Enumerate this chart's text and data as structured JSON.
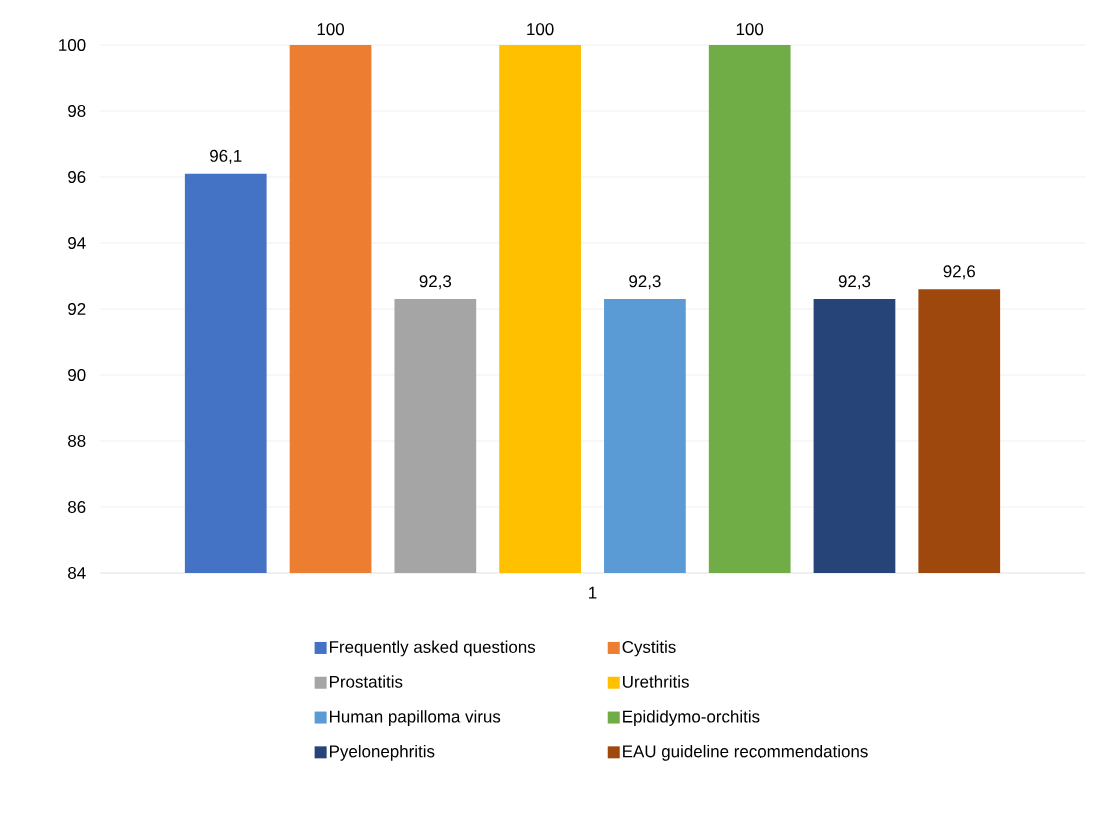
{
  "chart_data": {
    "type": "bar",
    "categories": [
      "1"
    ],
    "series": [
      {
        "name": "Frequently asked questions",
        "color": "#4472c4",
        "values": [
          96.1
        ],
        "value_labels": [
          "96,1"
        ]
      },
      {
        "name": "Cystitis",
        "color": "#ed7d31",
        "values": [
          100
        ],
        "value_labels": [
          "100"
        ]
      },
      {
        "name": "Prostatitis",
        "color": "#a5a5a5",
        "values": [
          92.3
        ],
        "value_labels": [
          "92,3"
        ]
      },
      {
        "name": "Urethritis",
        "color": "#ffc000",
        "values": [
          100
        ],
        "value_labels": [
          "100"
        ]
      },
      {
        "name": "Human papilloma virus",
        "color": "#5b9bd5",
        "values": [
          92.3
        ],
        "value_labels": [
          "92,3"
        ]
      },
      {
        "name": "Epididymo-orchitis",
        "color": "#70ad47",
        "values": [
          100
        ],
        "value_labels": [
          "100"
        ]
      },
      {
        "name": "Pyelonephritis",
        "color": "#264478",
        "values": [
          92.3
        ],
        "value_labels": [
          "92,3"
        ]
      },
      {
        "name": "EAU guideline recommendations",
        "color": "#9e480e",
        "values": [
          92.6
        ],
        "value_labels": [
          "92,6"
        ]
      }
    ],
    "ylim": [
      84,
      100
    ],
    "yticks": [
      84,
      86,
      88,
      90,
      92,
      94,
      96,
      98,
      100
    ],
    "grid": "y",
    "legend": "bottom"
  }
}
